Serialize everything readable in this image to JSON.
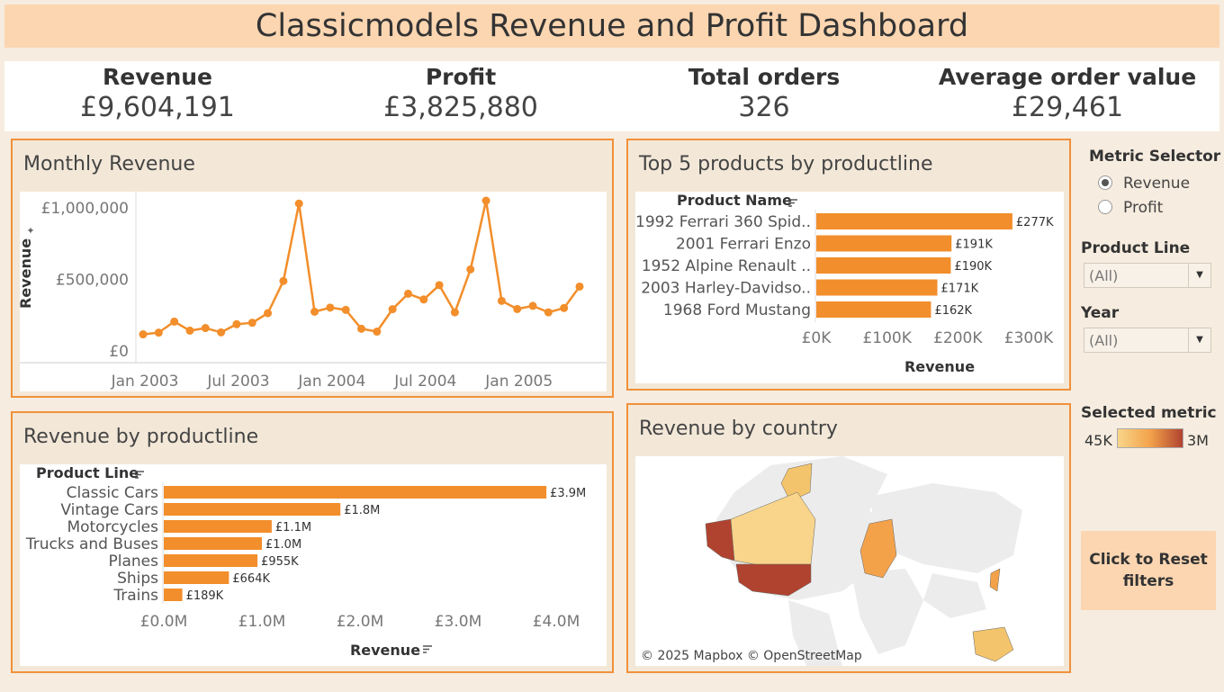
{
  "header": {
    "title": "Classicmodels Revenue and Profit Dashboard"
  },
  "kpis": [
    {
      "label": "Revenue",
      "value": "£9,604,191"
    },
    {
      "label": "Profit",
      "value": "£3,825,880"
    },
    {
      "label": "Total orders",
      "value": "326"
    },
    {
      "label": "Average order value",
      "value": "£29,461"
    }
  ],
  "panels": {
    "monthly": {
      "title": "Monthly Revenue"
    },
    "top5": {
      "title": "Top 5 products by productline"
    },
    "productline": {
      "title": "Revenue by productline"
    },
    "country": {
      "title": "Revenue by country",
      "attribution": "© 2025 Mapbox © OpenStreetMap"
    }
  },
  "controls": {
    "metric_selector": {
      "label": "Metric Selector",
      "options": [
        "Revenue",
        "Profit"
      ],
      "selected": "Revenue"
    },
    "product_line": {
      "label": "Product Line",
      "value": "(All)"
    },
    "year": {
      "label": "Year",
      "value": "(All)"
    },
    "legend": {
      "label": "Selected metric",
      "min": "45K",
      "max": "3M",
      "color_low": "#f8d58a",
      "color_high": "#b0432f"
    },
    "reset_label": "Click to Reset filters"
  },
  "colors": {
    "accent": "#f28e2b",
    "panel_border": "#f0913a",
    "title_bg": "#fbd6b1"
  },
  "chart_data": [
    {
      "type": "line",
      "title": "Monthly Revenue",
      "ylabel": "Revenue",
      "x": [
        "2003-01",
        "2003-02",
        "2003-03",
        "2003-04",
        "2003-05",
        "2003-06",
        "2003-07",
        "2003-08",
        "2003-09",
        "2003-10",
        "2003-11",
        "2003-12",
        "2004-01",
        "2004-02",
        "2004-03",
        "2004-04",
        "2004-05",
        "2004-06",
        "2004-07",
        "2004-08",
        "2004-09",
        "2004-10",
        "2004-11",
        "2004-12",
        "2005-01",
        "2005-02",
        "2005-03",
        "2005-04",
        "2005-05"
      ],
      "values": [
        116000,
        128000,
        205000,
        142000,
        160000,
        130000,
        187000,
        197000,
        264000,
        489000,
        1030000,
        274000,
        303000,
        287000,
        155000,
        135000,
        292000,
        400000,
        360000,
        460000,
        270000,
        570000,
        1050000,
        350000,
        293000,
        315000,
        270000,
        300000,
        450000
      ],
      "ylim": [
        0,
        1000000
      ],
      "y_ticks": [
        "£0",
        "£500,000",
        "£1,000,000"
      ],
      "x_tick_labels": [
        "Jan 2003",
        "Jul 2003",
        "Jan 2004",
        "Jul 2004",
        "Jan 2005"
      ]
    },
    {
      "type": "bar",
      "title": "Top 5 products by productline",
      "ylabel": "Product Name",
      "xlabel": "Revenue",
      "categories": [
        "1992 Ferrari 360 Spid..",
        "2001 Ferrari Enzo",
        "1952 Alpine Renault ..",
        "2003 Harley-Davidso..",
        "1968 Ford Mustang"
      ],
      "values": [
        277,
        191,
        190,
        171,
        162
      ],
      "value_labels": [
        "£277K",
        "£191K",
        "£190K",
        "£171K",
        "£162K"
      ],
      "xlim": [
        0,
        300
      ],
      "x_ticks": [
        "£0K",
        "£100K",
        "£200K",
        "£300K"
      ]
    },
    {
      "type": "bar",
      "title": "Revenue by productline",
      "ylabel": "Product Line",
      "xlabel": "Revenue",
      "categories": [
        "Classic Cars",
        "Vintage Cars",
        "Motorcycles",
        "Trucks and Buses",
        "Planes",
        "Ships",
        "Trains"
      ],
      "values": [
        3.9,
        1.8,
        1.1,
        1.0,
        0.955,
        0.664,
        0.189
      ],
      "value_labels": [
        "£3.9M",
        "£1.8M",
        "£1.1M",
        "£1.0M",
        "£955K",
        "£664K",
        "£189K"
      ],
      "xlim": [
        0,
        4
      ],
      "x_ticks": [
        "£0.0M",
        "£1.0M",
        "£2.0M",
        "£3.0M",
        "£4.0M"
      ]
    }
  ]
}
